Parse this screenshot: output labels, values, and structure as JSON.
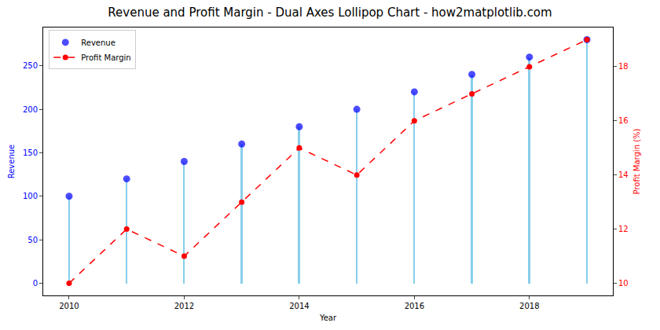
{
  "chart_data": {
    "type": "lollipop",
    "title": "Revenue and Profit Margin - Dual Axes Lollipop Chart - how2matplotlib.com",
    "x_label": "Year",
    "y_label": "Revenue",
    "y2_label": "Profit Margin (%)",
    "x": [
      2010,
      2011,
      2012,
      2013,
      2014,
      2015,
      2016,
      2017,
      2018,
      2019
    ],
    "series": [
      {
        "name": "Revenue",
        "type": "lollipop",
        "color": "blue",
        "marker": "circle",
        "values": [
          100,
          120,
          140,
          160,
          180,
          200,
          220,
          240,
          260,
          280
        ]
      },
      {
        "name": "Profit Margin",
        "type": "line",
        "axis": "y2",
        "color": "red",
        "marker": "circle",
        "line_style": "dashed",
        "values": [
          10,
          12,
          11,
          13,
          15,
          14,
          16,
          17,
          18,
          19
        ]
      }
    ],
    "xlim": [
      2009.55,
      2019.45
    ],
    "xticks": [
      2010,
      2012,
      2014,
      2016,
      2018
    ],
    "ylim": [
      -14,
      294
    ],
    "yticks": [
      0,
      50,
      100,
      150,
      200,
      250
    ],
    "y2lim": [
      9.55,
      19.45
    ],
    "y2ticks": [
      10,
      12,
      14,
      16,
      18
    ],
    "grid": false,
    "legend": "upper left"
  }
}
